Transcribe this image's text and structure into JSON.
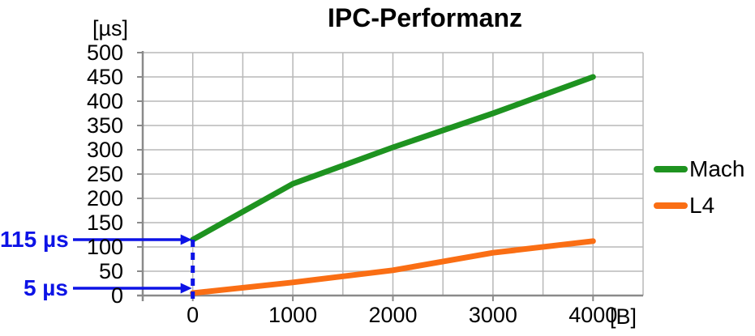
{
  "chart_data": {
    "type": "line",
    "title": "IPC-Performanz",
    "y_axis_unit_label": "[µs]",
    "x_axis_unit_label": "[B]",
    "x_ticks": [
      "0",
      "1000",
      "2000",
      "3000",
      "4000"
    ],
    "y_ticks": [
      "0",
      "50",
      "100",
      "150",
      "200",
      "250",
      "300",
      "350",
      "400",
      "450",
      "500"
    ],
    "x_range": [
      -500,
      4500
    ],
    "y_range": [
      0,
      500
    ],
    "x_gridline_step": 500,
    "y_gridline_step": 50,
    "grid": true,
    "legend_position": "right",
    "x": [
      0,
      1000,
      2000,
      3000,
      4000
    ],
    "series": [
      {
        "name": "Mach",
        "color": "#1e9320",
        "values": [
          115,
          230,
          305,
          375,
          450
        ]
      },
      {
        "name": "L4",
        "color": "#fa6e14",
        "values": [
          5,
          27,
          52,
          88,
          112
        ]
      }
    ],
    "annotations": [
      {
        "label": "115 µs",
        "y": 115
      },
      {
        "label": "5 µs",
        "y": 5
      }
    ],
    "annotation_color": "#0d13e6",
    "grid_color": "#b8b8b8",
    "axis_color": "#8a8a8a",
    "text_color": "#000000"
  }
}
